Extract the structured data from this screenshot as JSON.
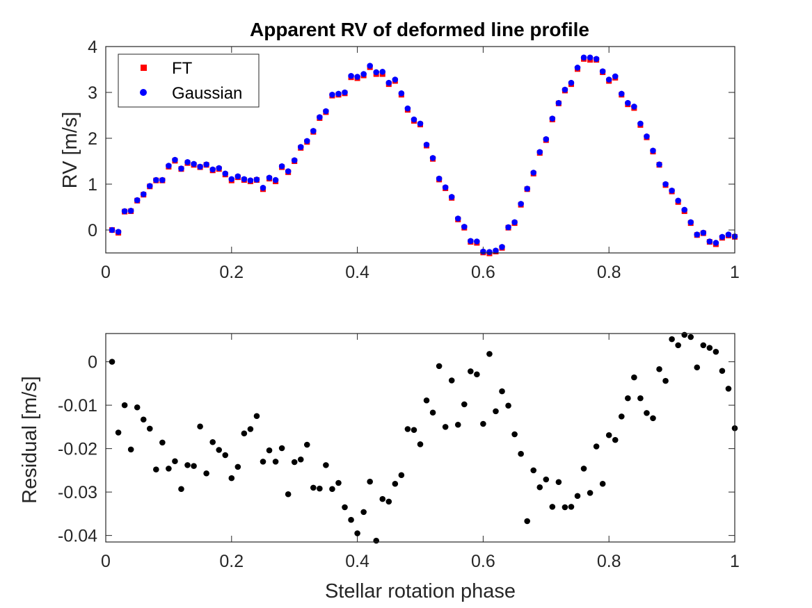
{
  "chart_data": [
    {
      "type": "scatter",
      "title": "Apparent RV of deformed line profile",
      "xlabel": "",
      "ylabel": "RV [m/s]",
      "xlim": [
        0,
        1
      ],
      "ylim": [
        -0.5,
        4
      ],
      "xticks": [
        0,
        0.2,
        0.4,
        0.6,
        0.8,
        1
      ],
      "xtick_labels": [
        "0",
        "0.2",
        "0.4",
        "0.6",
        "0.8",
        "1"
      ],
      "yticks": [
        0,
        1,
        2,
        3,
        4
      ],
      "ytick_labels": [
        "0",
        "1",
        "2",
        "3",
        "4"
      ],
      "grid": false,
      "legend_position": "top-left",
      "x": [
        0.01,
        0.02,
        0.03,
        0.04,
        0.05,
        0.06,
        0.07,
        0.08,
        0.09,
        0.1,
        0.11,
        0.12,
        0.13,
        0.14,
        0.15,
        0.16,
        0.17,
        0.18,
        0.19,
        0.2,
        0.21,
        0.22,
        0.23,
        0.24,
        0.25,
        0.26,
        0.27,
        0.28,
        0.29,
        0.3,
        0.31,
        0.32,
        0.33,
        0.34,
        0.35,
        0.36,
        0.37,
        0.38,
        0.39,
        0.4,
        0.41,
        0.42,
        0.43,
        0.44,
        0.45,
        0.46,
        0.47,
        0.48,
        0.49,
        0.5,
        0.51,
        0.52,
        0.53,
        0.54,
        0.55,
        0.56,
        0.57,
        0.58,
        0.59,
        0.6,
        0.61,
        0.62,
        0.63,
        0.64,
        0.65,
        0.66,
        0.67,
        0.68,
        0.69,
        0.7,
        0.71,
        0.72,
        0.73,
        0.74,
        0.75,
        0.76,
        0.77,
        0.78,
        0.79,
        0.8,
        0.81,
        0.82,
        0.83,
        0.84,
        0.85,
        0.86,
        0.87,
        0.88,
        0.89,
        0.9,
        0.91,
        0.92,
        0.93,
        0.94,
        0.95,
        0.96,
        0.97,
        0.98,
        0.99,
        1.0
      ],
      "series": [
        {
          "name": "FT",
          "color": "#ff0000",
          "marker": "square",
          "values": [
            0.0,
            -0.06,
            0.4,
            0.41,
            0.64,
            0.77,
            0.95,
            1.08,
            1.08,
            1.38,
            1.51,
            1.33,
            1.46,
            1.42,
            1.37,
            1.42,
            1.3,
            1.33,
            1.21,
            1.08,
            1.15,
            1.09,
            1.06,
            1.09,
            0.89,
            1.12,
            1.06,
            1.37,
            1.26,
            1.5,
            1.79,
            1.92,
            2.14,
            2.44,
            2.57,
            2.93,
            2.95,
            2.98,
            3.33,
            3.31,
            3.37,
            3.55,
            3.4,
            3.4,
            3.18,
            3.25,
            2.95,
            2.62,
            2.38,
            2.3,
            1.84,
            1.55,
            1.1,
            0.91,
            0.7,
            0.23,
            0.05,
            -0.26,
            -0.28,
            -0.49,
            -0.51,
            -0.47,
            -0.39,
            0.05,
            0.15,
            0.55,
            0.89,
            1.23,
            1.68,
            1.96,
            2.41,
            2.76,
            3.04,
            3.18,
            3.51,
            3.73,
            3.71,
            3.71,
            3.44,
            3.25,
            3.32,
            2.95,
            2.74,
            2.66,
            2.29,
            2.02,
            1.71,
            1.42,
            0.98,
            0.84,
            0.61,
            0.41,
            0.15,
            -0.11,
            -0.07,
            -0.26,
            -0.31,
            -0.17,
            -0.12,
            -0.15
          ]
        },
        {
          "name": "Gaussian",
          "color": "#0000ff",
          "marker": "circle",
          "values": [
            0.0,
            -0.04,
            0.41,
            0.42,
            0.65,
            0.78,
            0.96,
            1.09,
            1.09,
            1.4,
            1.53,
            1.34,
            1.48,
            1.44,
            1.38,
            1.43,
            1.32,
            1.35,
            1.23,
            1.11,
            1.17,
            1.11,
            1.08,
            1.1,
            0.92,
            1.14,
            1.09,
            1.39,
            1.28,
            1.52,
            1.81,
            1.94,
            2.16,
            2.46,
            2.59,
            2.95,
            2.97,
            3.0,
            3.36,
            3.34,
            3.4,
            3.58,
            3.44,
            3.45,
            3.21,
            3.28,
            2.98,
            2.65,
            2.41,
            2.32,
            1.86,
            1.57,
            1.12,
            0.93,
            0.72,
            0.25,
            0.07,
            -0.24,
            -0.25,
            -0.47,
            -0.48,
            -0.45,
            -0.37,
            0.06,
            0.17,
            0.57,
            0.9,
            1.25,
            1.7,
            1.98,
            2.43,
            2.77,
            3.06,
            3.21,
            3.54,
            3.76,
            3.76,
            3.73,
            3.46,
            3.28,
            3.35,
            2.97,
            2.77,
            2.69,
            2.32,
            2.04,
            1.73,
            1.43,
            1.0,
            0.86,
            0.64,
            0.44,
            0.17,
            -0.1,
            -0.06,
            -0.25,
            -0.28,
            -0.15,
            -0.1,
            -0.14
          ]
        }
      ]
    },
    {
      "type": "scatter",
      "title": "",
      "xlabel": "Stellar rotation phase",
      "ylabel": "Residual [m/s]",
      "xlim": [
        0,
        1
      ],
      "ylim": [
        -0.0415,
        0.0065
      ],
      "xticks": [
        0,
        0.2,
        0.4,
        0.6,
        0.8,
        1
      ],
      "xtick_labels": [
        "0",
        "0.2",
        "0.4",
        "0.6",
        "0.8",
        "1"
      ],
      "yticks": [
        0,
        -0.01,
        -0.02,
        -0.03,
        -0.04
      ],
      "ytick_labels": [
        "0",
        "-0.01",
        "-0.02",
        "-0.03",
        "-0.04"
      ],
      "grid": false,
      "x": [
        0.01,
        0.02,
        0.03,
        0.04,
        0.05,
        0.06,
        0.07,
        0.08,
        0.09,
        0.1,
        0.11,
        0.12,
        0.13,
        0.14,
        0.15,
        0.16,
        0.17,
        0.18,
        0.19,
        0.2,
        0.21,
        0.22,
        0.23,
        0.24,
        0.25,
        0.26,
        0.27,
        0.28,
        0.29,
        0.3,
        0.31,
        0.32,
        0.33,
        0.34,
        0.35,
        0.36,
        0.37,
        0.38,
        0.39,
        0.4,
        0.41,
        0.42,
        0.43,
        0.44,
        0.45,
        0.46,
        0.47,
        0.48,
        0.49,
        0.5,
        0.51,
        0.52,
        0.53,
        0.54,
        0.55,
        0.56,
        0.57,
        0.58,
        0.59,
        0.6,
        0.61,
        0.62,
        0.63,
        0.64,
        0.65,
        0.66,
        0.67,
        0.68,
        0.69,
        0.7,
        0.71,
        0.72,
        0.73,
        0.74,
        0.75,
        0.76,
        0.77,
        0.78,
        0.79,
        0.8,
        0.81,
        0.82,
        0.83,
        0.84,
        0.85,
        0.86,
        0.87,
        0.88,
        0.89,
        0.9,
        0.91,
        0.92,
        0.93,
        0.94,
        0.95,
        0.96,
        0.97,
        0.98,
        0.99,
        1.0
      ],
      "series": [
        {
          "name": "",
          "color": "#000000",
          "marker": "circle",
          "values": [
            0.0,
            -0.0163,
            -0.01,
            -0.0202,
            -0.0105,
            -0.0133,
            -0.0154,
            -0.0248,
            -0.0186,
            -0.0246,
            -0.0229,
            -0.0293,
            -0.0238,
            -0.024,
            -0.0149,
            -0.0257,
            -0.0185,
            -0.0203,
            -0.0215,
            -0.0268,
            -0.0242,
            -0.0165,
            -0.0155,
            -0.0125,
            -0.023,
            -0.0204,
            -0.023,
            -0.0199,
            -0.0305,
            -0.0231,
            -0.0225,
            -0.0191,
            -0.029,
            -0.0292,
            -0.0238,
            -0.0293,
            -0.0279,
            -0.0335,
            -0.0364,
            -0.0395,
            -0.0346,
            -0.0276,
            -0.0412,
            -0.0316,
            -0.0322,
            -0.0281,
            -0.0261,
            -0.0155,
            -0.0157,
            -0.019,
            -0.0089,
            -0.0117,
            -0.001,
            -0.015,
            -0.0043,
            -0.0145,
            -0.0098,
            -0.0022,
            -0.0029,
            -0.0143,
            0.0018,
            -0.0114,
            -0.0068,
            -0.0101,
            -0.0167,
            -0.0212,
            -0.0367,
            -0.025,
            -0.0289,
            -0.0271,
            -0.0334,
            -0.0277,
            -0.0335,
            -0.0334,
            -0.0309,
            -0.0246,
            -0.0302,
            -0.0195,
            -0.0281,
            -0.0169,
            -0.018,
            -0.0126,
            -0.0084,
            -0.0036,
            -0.0084,
            -0.0118,
            -0.013,
            -0.0017,
            -0.0044,
            0.0052,
            0.0038,
            0.0062,
            0.0057,
            -0.0013,
            0.0038,
            0.0032,
            0.0023,
            -0.0021,
            -0.0062,
            -0.0153
          ]
        }
      ]
    }
  ]
}
